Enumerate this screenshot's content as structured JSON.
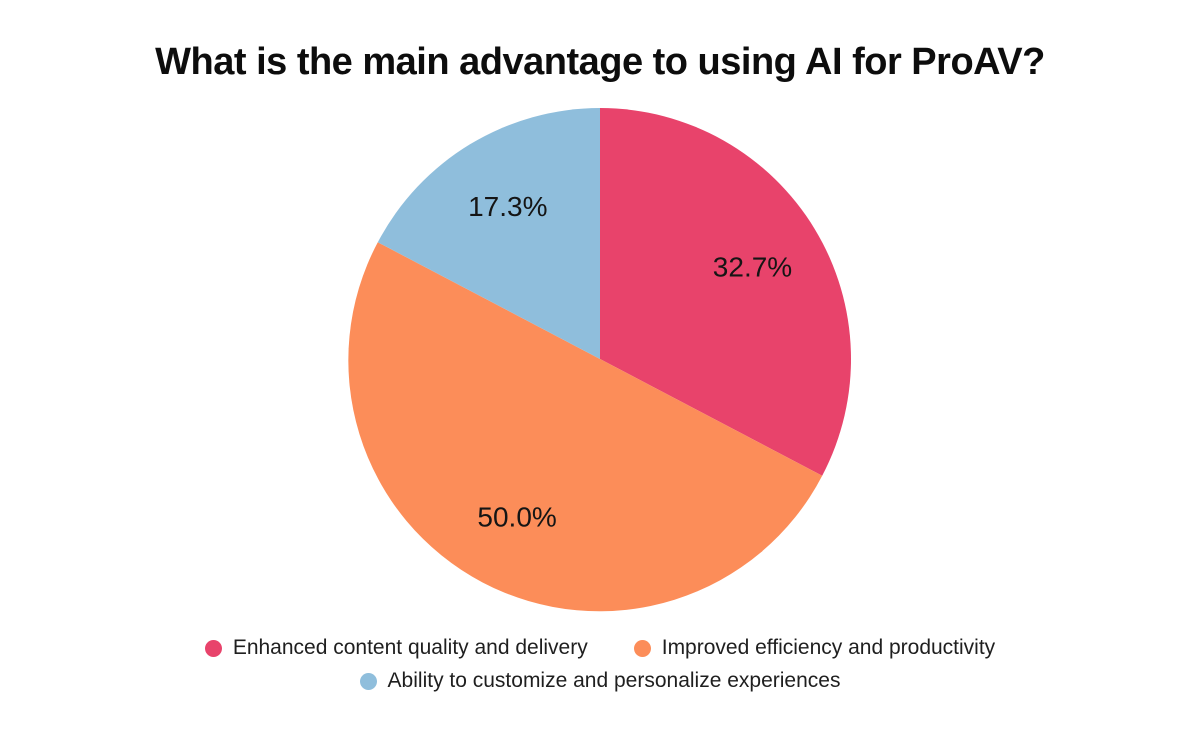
{
  "title": "What is the main advantage to using AI for ProAV?",
  "chart_data": {
    "type": "pie",
    "title": "What is the main advantage to using AI for ProAV?",
    "categories": [
      "Enhanced content quality and delivery",
      "Improved efficiency and productivity",
      "Ability to customize and personalize experiences"
    ],
    "values": [
      32.7,
      50.0,
      17.3
    ],
    "value_labels": [
      "32.7%",
      "50.0%",
      "17.3%"
    ],
    "colors": [
      "#E8436B",
      "#FC8D59",
      "#8FBEDC"
    ],
    "start_angle": "12-o-clock",
    "direction": "clockwise",
    "slice_label_color": "#151515",
    "legend_position": "bottom",
    "grid": false
  },
  "legend": {
    "items": [
      {
        "label": "Enhanced content quality and delivery",
        "color": "#E8436B"
      },
      {
        "label": "Improved efficiency and productivity",
        "color": "#FC8D59"
      },
      {
        "label": "Ability to customize and personalize experiences",
        "color": "#8FBEDC"
      }
    ]
  }
}
